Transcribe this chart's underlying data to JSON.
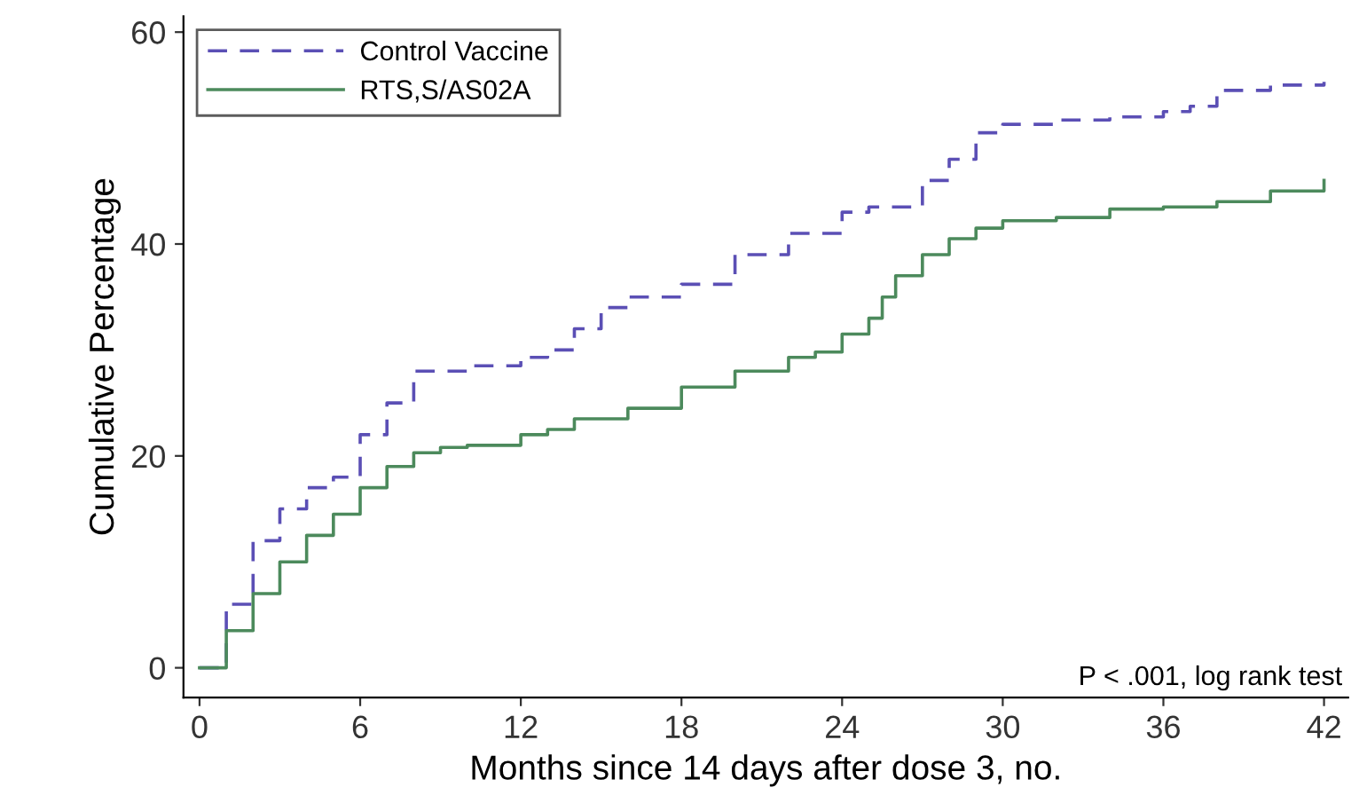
{
  "chart_data": {
    "type": "step",
    "xlabel": "Months since 14 days after dose 3, no.",
    "ylabel": "Cumulative Percentage",
    "xlim": [
      -0.6,
      42.9
    ],
    "ylim": [
      -2.8,
      61.5
    ],
    "xticks": [
      0,
      6,
      12,
      18,
      24,
      30,
      36,
      42
    ],
    "yticks": [
      0,
      20,
      40,
      60
    ],
    "grid": false,
    "legend": "top left",
    "annotations": [
      "P < .001, log rank test"
    ],
    "series": [
      {
        "name": "Control Vaccine",
        "color": "#5b4fb5",
        "line_style": "dashed",
        "x": [
          0,
          1,
          2,
          3,
          4,
          5,
          6,
          7,
          8,
          9,
          10,
          12,
          13,
          14,
          15,
          16,
          18,
          20,
          22,
          24,
          25,
          27,
          28,
          29,
          30,
          32,
          34,
          36,
          37,
          38,
          40,
          42
        ],
        "values": [
          0,
          6,
          12,
          15,
          17,
          18,
          22,
          25,
          28,
          28,
          28.5,
          29.3,
          30,
          32,
          34,
          35,
          36.2,
          39,
          41,
          43,
          43.5,
          46,
          48,
          50.5,
          51.3,
          51.7,
          52,
          52.5,
          53,
          54.5,
          55,
          55.3
        ]
      },
      {
        "name": "RTS,S/AS02A",
        "color": "#4c8a5c",
        "line_style": "solid",
        "x": [
          0,
          1,
          2,
          3,
          4,
          5,
          6,
          7,
          8,
          9,
          10,
          12,
          13,
          14,
          16,
          18,
          20,
          22,
          23,
          24,
          25,
          25.5,
          26,
          27,
          28,
          29,
          30,
          32,
          34,
          36,
          38,
          40,
          42
        ],
        "values": [
          0,
          3.5,
          7,
          10,
          12.5,
          14.5,
          17,
          19,
          20.3,
          20.8,
          21,
          22,
          22.5,
          23.5,
          24.5,
          26.5,
          28,
          29.3,
          29.8,
          31.5,
          33,
          35,
          37,
          39,
          40.5,
          41.5,
          42.2,
          42.5,
          43.3,
          43.5,
          44,
          45,
          46
        ]
      }
    ]
  }
}
